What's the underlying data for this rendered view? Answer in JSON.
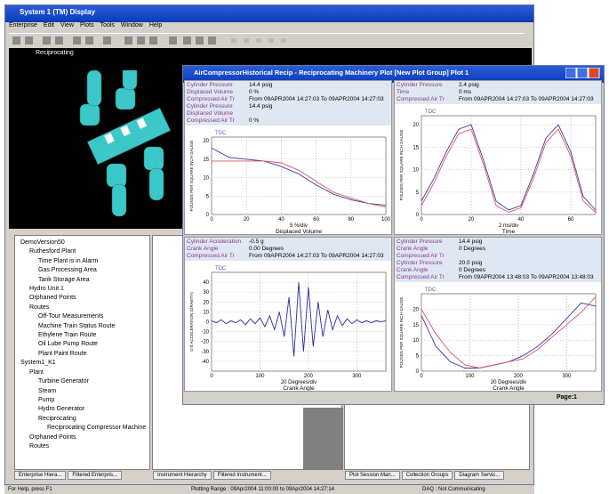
{
  "main_window": {
    "title": "System 1 (TM) Display",
    "menu": [
      "Enterprise",
      "Edit",
      "View",
      "Plots",
      "Tools",
      "Window",
      "Help"
    ],
    "view_title": "Reciprocating",
    "tree": [
      "DemoVersion50",
      "Ruthesford Plant",
      "Time Plant is in Alarm",
      "Gas Processing Area",
      "Tank Storage Area",
      "Hydro Unit 1",
      "Orphaned Points",
      "Routes",
      "Off-Tour Measurements",
      "Machine Train Status Route",
      "Ethylene Train Route",
      "Oil Lube Pump Route",
      "Plant Paint Route",
      "System1_K1",
      "Plant",
      "Turbine Generator",
      "Steam",
      "Pump",
      "Hydro Generator",
      "Reciprocating",
      "Reciprocating Compressor Machine",
      "Orphaned Points",
      "Routes"
    ],
    "tabs_left": [
      "Enterprise Hiera...",
      "Filtered Enterpris..."
    ],
    "tabs_middle": [
      "Instrument Hierarchy",
      "Filtered Instrument..."
    ],
    "tabs_right": [
      "Plot Session Man...",
      "Collection Groups",
      "Diagram Servic..."
    ],
    "status": [
      "For Help, press F1",
      "Plotting Range : 09Apr2004 11:00:00 to 09Apr2004 14:27:14",
      "DAQ : Not Communicating"
    ]
  },
  "plot_window": {
    "title": "AirCompressorHistorical Recip - Reciprocating Machinery Plot [New Plot Group] Plot 1",
    "page": "Page:1"
  },
  "chart_data": [
    {
      "type": "line",
      "readouts": [
        {
          "label": "Cylinder Pressure",
          "value": "14.4 psig"
        },
        {
          "label": "Displaced Volume",
          "value": "0 %"
        },
        {
          "label": "Compressed Air Tr",
          "value": "From 09APR2004 14:27:03 To 09APR2004 14:27:03"
        },
        {
          "label": "Cylinder Pressure",
          "value": "14.4 psig"
        },
        {
          "label": "Displaced Volume",
          "value": ""
        },
        {
          "label": "Compressed Air Tr",
          "value": "0 %"
        }
      ],
      "annotation": "TDC",
      "ylabel": "POUNDS PER SQUARE INCH GAUGE",
      "xunit": "5 %/div",
      "xlabel": "Displaced Volume",
      "x": [
        0,
        10,
        20,
        30,
        40,
        50,
        60,
        70,
        80,
        90,
        100
      ],
      "xlim": [
        0,
        100
      ],
      "xticks": [
        0,
        20,
        40,
        60,
        80,
        100
      ],
      "ylim": [
        0,
        21
      ],
      "yticks": [
        0,
        5,
        10,
        15,
        20
      ],
      "series": [
        {
          "color": "#3a3aa0",
          "values": [
            18,
            15.5,
            15,
            14.5,
            13,
            11,
            8,
            5.5,
            4,
            3,
            2.5
          ]
        },
        {
          "color": "#e05060",
          "values": [
            14.5,
            14.5,
            14.5,
            14.5,
            14,
            12,
            9,
            6,
            4.5,
            3,
            2
          ]
        }
      ]
    },
    {
      "type": "line",
      "readouts": [
        {
          "label": "Cylinder Pressure",
          "value": "2.4 psig"
        },
        {
          "label": "Time",
          "value": "0 ms"
        },
        {
          "label": "Compressed Air Tr",
          "value": "From 09APR2004 14:27:03 To 09APR2004 14:27:03"
        }
      ],
      "annotation": "TDC",
      "ylabel": "POUNDS PER SQUARE INCH GAUGE",
      "xunit": "2 ms/div",
      "xlabel": "Time",
      "x": [
        0,
        5,
        10,
        15,
        20,
        25,
        30,
        35,
        40,
        45,
        50,
        55,
        60,
        65,
        70
      ],
      "xlim": [
        0,
        70
      ],
      "xticks": [
        0,
        20,
        40,
        60
      ],
      "ylim": [
        0,
        22
      ],
      "yticks": [
        0,
        5,
        10,
        15,
        20
      ],
      "series": [
        {
          "color": "#3a3aa0",
          "values": [
            3,
            8,
            14,
            19,
            20,
            12,
            3,
            1,
            2,
            9,
            17,
            20,
            14,
            4,
            1
          ]
        },
        {
          "color": "#e05060",
          "values": [
            2,
            7,
            13,
            18,
            19,
            11,
            2,
            0.5,
            1.5,
            8,
            16,
            19,
            13,
            3,
            0.5
          ]
        }
      ]
    },
    {
      "type": "line",
      "readouts": [
        {
          "label": "Cylinder Acceleration",
          "value": "-0.5 g"
        },
        {
          "label": "Crank Angle",
          "value": "0.00 Degrees"
        },
        {
          "label": "Compressed Air Tr",
          "value": "From 09APR2004 14:27:03 To 09APR2004 14:27:03"
        }
      ],
      "annotation": "TDC",
      "ylabel": "G'S ACCELERATION (GRAVITY)",
      "xunit": "20 Degrees/div",
      "xlabel": "Crank Angle",
      "x": [
        0,
        10,
        20,
        30,
        40,
        50,
        60,
        70,
        80,
        90,
        100,
        110,
        120,
        130,
        140,
        150,
        160,
        170,
        180,
        190,
        200,
        210,
        220,
        230,
        240,
        250,
        260,
        270,
        280,
        290,
        300,
        310,
        320,
        330,
        340,
        350,
        360
      ],
      "xlim": [
        0,
        360
      ],
      "xticks": [
        0,
        100,
        200,
        300
      ],
      "ylim": [
        -50,
        50
      ],
      "yticks": [
        -40,
        -30,
        -20,
        -10,
        0,
        10,
        20,
        30,
        40
      ],
      "series": [
        {
          "color": "#2a2aa8",
          "values": [
            1,
            -1,
            2,
            -2,
            1,
            -1,
            2,
            -3,
            3,
            -2,
            4,
            -5,
            6,
            -8,
            10,
            -15,
            25,
            -35,
            40,
            -30,
            35,
            -25,
            20,
            -15,
            12,
            -8,
            6,
            -4,
            3,
            -2,
            2,
            -1,
            1,
            -1,
            1,
            0,
            1
          ]
        }
      ]
    },
    {
      "type": "line",
      "readouts": [
        {
          "label": "Cylinder Pressure",
          "value": "14.4 psig"
        },
        {
          "label": "Crank Angle",
          "value": "0 Degrees"
        },
        {
          "label": "Compressed Air Tr",
          "value": ""
        },
        {
          "label": "Cylinder Pressure",
          "value": "20.0 psig"
        },
        {
          "label": "Crank Angle",
          "value": "0 Degrees"
        },
        {
          "label": "Compressed Air Tr",
          "value": "From 09APR2004 13:48:03 To 09APR2004 13:48:03"
        }
      ],
      "annotation": "TDC",
      "ylabel": "POUNDS PER SQUARE INCH GAUGE",
      "xunit": "20 Degrees/div",
      "xlabel": "Crank Angle",
      "x": [
        0,
        30,
        60,
        90,
        120,
        150,
        180,
        210,
        240,
        270,
        300,
        330,
        360
      ],
      "xlim": [
        0,
        360
      ],
      "xticks": [
        0,
        100,
        200,
        300
      ],
      "ylim": [
        0,
        25
      ],
      "yticks": [
        0,
        5,
        10,
        15,
        20
      ],
      "series": [
        {
          "color": "#3a3aa0",
          "values": [
            18,
            8,
            3,
            1,
            1,
            2,
            3,
            5,
            8,
            12,
            17,
            22,
            21
          ]
        },
        {
          "color": "#e05060",
          "values": [
            20,
            12,
            6,
            2,
            1,
            2,
            3,
            4,
            7,
            11,
            15,
            19,
            24
          ]
        }
      ]
    }
  ]
}
